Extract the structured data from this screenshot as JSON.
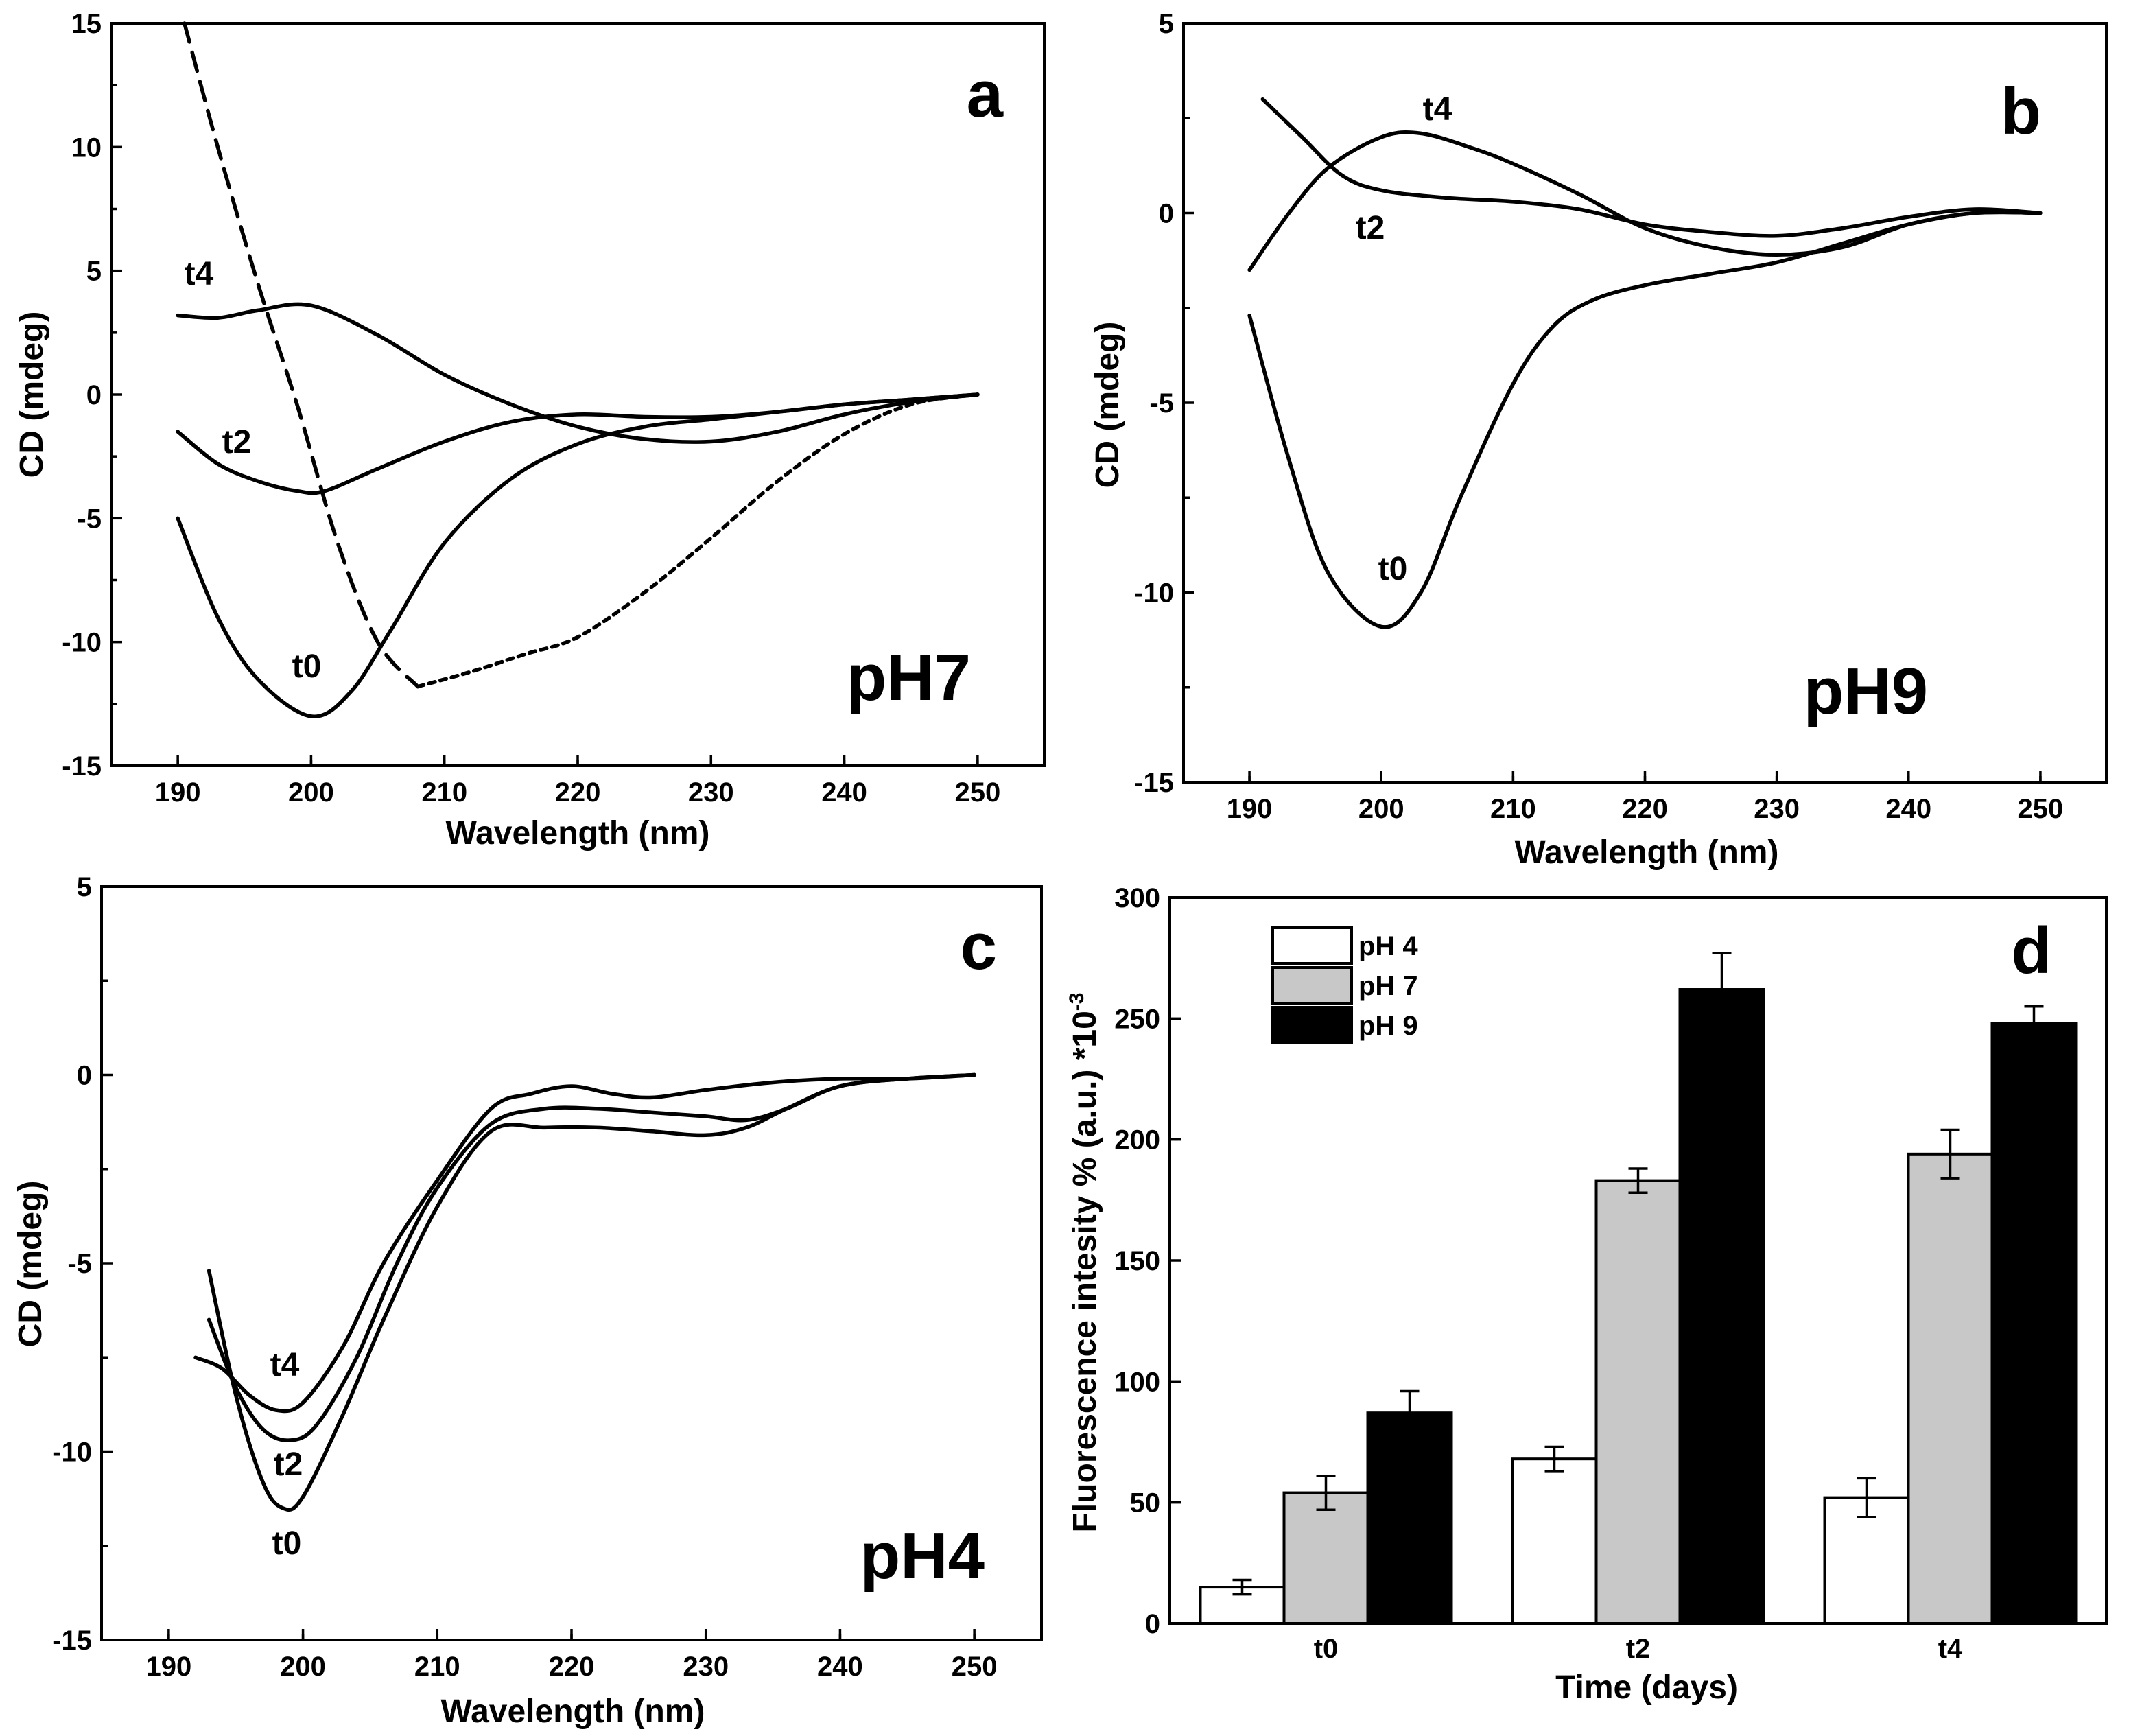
{
  "chart_data": [
    {
      "type": "line",
      "panel_letter": "a",
      "panel_label": "pH7",
      "xlabel": "Wavelength (nm)",
      "ylabel": "CD (mdeg)",
      "xlim": [
        185,
        255
      ],
      "ylim": [
        -15,
        15
      ],
      "xticks": [
        190,
        200,
        210,
        220,
        230,
        240,
        250
      ],
      "yticks": [
        15,
        10,
        5,
        0,
        -5,
        -10,
        -15
      ],
      "series": [
        {
          "name": "t4",
          "style": "solid",
          "x": [
            190,
            193,
            196,
            200,
            205,
            210,
            215,
            220,
            225,
            230,
            235,
            240,
            245,
            250
          ],
          "y": [
            3.2,
            3.1,
            3.4,
            3.6,
            2.4,
            0.8,
            -0.4,
            -1.3,
            -1.8,
            -1.9,
            -1.5,
            -0.8,
            -0.3,
            0
          ]
        },
        {
          "name": "t2",
          "style": "solid",
          "x": [
            190,
            193,
            196,
            199,
            201,
            205,
            210,
            215,
            220,
            225,
            230,
            235,
            240,
            245,
            250
          ],
          "y": [
            -1.5,
            -2.8,
            -3.5,
            -3.9,
            -3.9,
            -3.0,
            -1.9,
            -1.1,
            -0.8,
            -0.9,
            -0.9,
            -0.7,
            -0.4,
            -0.2,
            0
          ]
        },
        {
          "name": "t0",
          "style": "solid",
          "x": [
            190,
            193,
            196,
            200,
            203,
            206,
            210,
            215,
            220,
            225,
            230,
            235,
            240,
            245,
            250
          ],
          "y": [
            -5.0,
            -9.0,
            -11.5,
            -13.0,
            -12.0,
            -9.5,
            -6.0,
            -3.4,
            -2.0,
            -1.3,
            -1.0,
            -0.7,
            -0.4,
            -0.2,
            0
          ]
        },
        {
          "name": "",
          "style": "dashed",
          "x": [
            190.5,
            193,
            196,
            199,
            202,
            205,
            208
          ],
          "y": [
            15,
            10,
            4.5,
            -0.5,
            -6.0,
            -10.0,
            -11.8
          ]
        },
        {
          "name": "",
          "style": "dotted",
          "x": [
            208,
            212,
            216,
            220,
            225,
            230,
            235,
            240,
            245,
            250
          ],
          "y": [
            -11.8,
            -11.2,
            -10.5,
            -9.8,
            -8.0,
            -5.8,
            -3.5,
            -1.6,
            -0.4,
            0
          ]
        }
      ]
    },
    {
      "type": "line",
      "panel_letter": "b",
      "panel_label": "pH9",
      "xlabel": "Wavelength (nm)",
      "ylabel": "CD (mdeg)",
      "xlim": [
        185,
        255
      ],
      "ylim": [
        -15,
        5
      ],
      "xticks": [
        190,
        200,
        210,
        220,
        230,
        240,
        250
      ],
      "yticks": [
        5,
        0,
        -5,
        -10,
        -15
      ],
      "series": [
        {
          "name": "t4",
          "style": "solid",
          "x": [
            190,
            193,
            196,
            200,
            203,
            207,
            210,
            215,
            220,
            225,
            230,
            235,
            240,
            245,
            250
          ],
          "y": [
            -1.5,
            0.0,
            1.2,
            2.0,
            2.1,
            1.7,
            1.3,
            0.5,
            -0.4,
            -0.9,
            -1.1,
            -0.9,
            -0.3,
            0.0,
            0
          ]
        },
        {
          "name": "t2",
          "style": "solid",
          "x": [
            191,
            194,
            197,
            200,
            205,
            210,
            215,
            220,
            225,
            230,
            235,
            240,
            245,
            250
          ],
          "y": [
            3.0,
            2.0,
            1.0,
            0.6,
            0.4,
            0.3,
            0.1,
            -0.3,
            -0.5,
            -0.6,
            -0.4,
            -0.1,
            0.1,
            0
          ]
        },
        {
          "name": "t0",
          "style": "solid",
          "x": [
            190,
            193,
            196,
            200,
            203,
            206,
            210,
            213,
            216,
            220,
            225,
            230,
            235,
            240,
            245,
            250
          ],
          "y": [
            -2.7,
            -6.5,
            -9.5,
            -10.9,
            -10.0,
            -7.5,
            -4.5,
            -3.0,
            -2.3,
            -1.9,
            -1.6,
            -1.3,
            -0.8,
            -0.3,
            0.0,
            0
          ]
        }
      ]
    },
    {
      "type": "line",
      "panel_letter": "c",
      "panel_label": "pH4",
      "xlabel": "Wavelength (nm)",
      "ylabel": "CD (mdeg)",
      "xlim": [
        185,
        255
      ],
      "ylim": [
        -15,
        5
      ],
      "xticks": [
        190,
        200,
        210,
        220,
        230,
        240,
        250
      ],
      "yticks": [
        5,
        0,
        -5,
        -10,
        -15
      ],
      "series": [
        {
          "name": "t4",
          "style": "solid",
          "x": [
            192,
            194,
            196,
            198,
            200,
            203,
            206,
            210,
            214,
            217,
            220,
            223,
            226,
            230,
            235,
            240,
            245,
            250
          ],
          "y": [
            -7.5,
            -7.8,
            -8.5,
            -8.9,
            -8.7,
            -7.2,
            -5.0,
            -2.8,
            -0.9,
            -0.5,
            -0.3,
            -0.5,
            -0.6,
            -0.4,
            -0.2,
            -0.1,
            -0.1,
            0
          ]
        },
        {
          "name": "t2",
          "style": "solid",
          "x": [
            193,
            195,
            197,
            199,
            201,
            204,
            207,
            210,
            214,
            218,
            222,
            226,
            230,
            233,
            236,
            240,
            245,
            250
          ],
          "y": [
            -6.5,
            -8.3,
            -9.4,
            -9.7,
            -9.3,
            -7.5,
            -5.0,
            -3.0,
            -1.3,
            -0.9,
            -0.9,
            -1.0,
            -1.1,
            -1.2,
            -0.9,
            -0.3,
            -0.1,
            0
          ]
        },
        {
          "name": "t0",
          "style": "solid",
          "x": [
            193,
            195,
            197,
            198.5,
            200,
            203,
            206,
            210,
            214,
            218,
            222,
            226,
            230,
            233,
            236,
            240,
            245,
            250
          ],
          "y": [
            -5.2,
            -8.5,
            -10.8,
            -11.5,
            -11.2,
            -9.0,
            -6.5,
            -3.5,
            -1.5,
            -1.4,
            -1.4,
            -1.5,
            -1.6,
            -1.4,
            -0.9,
            -0.3,
            -0.1,
            0
          ]
        }
      ]
    },
    {
      "type": "bar",
      "panel_letter": "d",
      "xlabel": "Time (days)",
      "ylabel": "Fluorescence intesity % (a.u.) *10",
      "ylabel_exp": "-3",
      "ylim": [
        0,
        300
      ],
      "yticks": [
        300,
        250,
        200,
        150,
        100,
        50,
        0
      ],
      "categories": [
        "t0",
        "t2",
        "t4"
      ],
      "series": [
        {
          "name": "pH 4",
          "color": "#ffffff",
          "values": [
            15,
            68,
            52
          ],
          "errors": [
            3,
            5,
            8
          ]
        },
        {
          "name": "pH 7",
          "color": "#c8c8c8",
          "values": [
            54,
            183,
            194
          ],
          "errors": [
            7,
            5,
            10
          ]
        },
        {
          "name": "pH 9",
          "color": "#000000",
          "values": [
            87,
            262,
            248
          ],
          "errors": [
            9,
            15,
            7
          ]
        }
      ],
      "legend_position": "top-left"
    }
  ]
}
